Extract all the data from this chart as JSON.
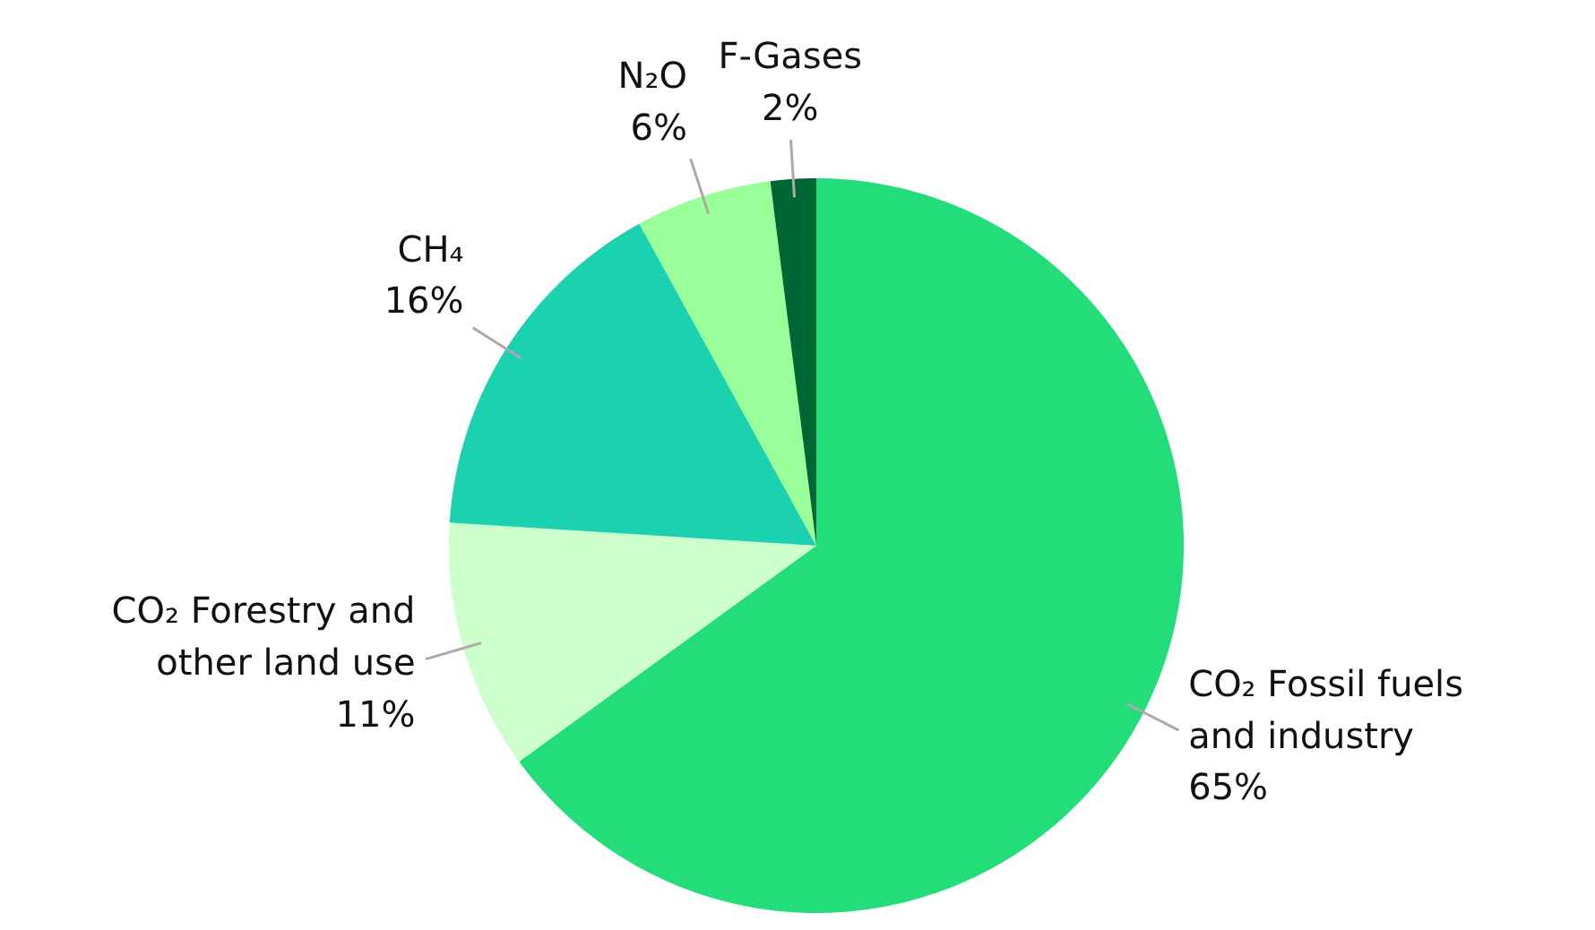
{
  "chart_data": {
    "type": "pie",
    "categories": [
      "CO₂ Fossil fuels\nand industry",
      "CO₂ Forestry and\nother land use",
      "CH₄",
      "N₂O",
      "F-Gases"
    ],
    "values": [
      65,
      11,
      16,
      6,
      2
    ],
    "value_labels": [
      "65%",
      "11%",
      "16%",
      "6%",
      "2%"
    ],
    "colors": [
      "#22dd7a",
      "#ccffcc",
      "#1cd1b0",
      "#99ff99",
      "#006633"
    ]
  }
}
